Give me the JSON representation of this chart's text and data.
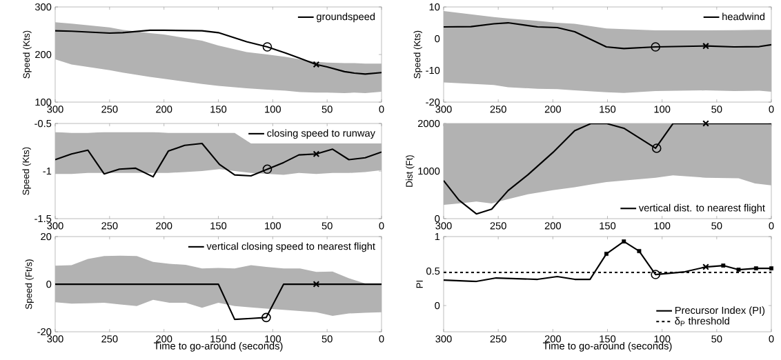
{
  "chart_data": [
    {
      "type": "line",
      "ylabel": "Speed (Kts)",
      "xlim": [
        300,
        0
      ],
      "ylim": [
        100,
        300
      ],
      "xticks": [
        300,
        250,
        200,
        150,
        100,
        50,
        0
      ],
      "yticks": [
        100,
        200,
        300
      ],
      "legend": "top right",
      "series": [
        {
          "name": "groundspeed",
          "color": "#000000",
          "x": [
            300,
            285,
            250,
            238,
            213,
            200,
            165,
            150,
            124,
            105,
            88,
            75,
            60,
            50,
            34,
            25,
            15,
            0
          ],
          "values": [
            250,
            249,
            245,
            246,
            251,
            251,
            250,
            246,
            227,
            216,
            203,
            192,
            179,
            174,
            164,
            161,
            159,
            162
          ],
          "upper": [
            268,
            265,
            257,
            252,
            245,
            242,
            229,
            219,
            205,
            200,
            195,
            190,
            185,
            183,
            182,
            182,
            181,
            181
          ],
          "lower": [
            190,
            179,
            167,
            162,
            153,
            149,
            138,
            134,
            129,
            126,
            124,
            121,
            120,
            120,
            119,
            120,
            119,
            122
          ]
        },
        {
          "type": "scatter",
          "marker": "circle",
          "color": "#000000",
          "x": [
            105
          ],
          "values": [
            216
          ]
        },
        {
          "type": "scatter",
          "marker": "cross",
          "color": "#000000",
          "x": [
            60
          ],
          "values": [
            179
          ]
        }
      ]
    },
    {
      "type": "line",
      "ylabel": "Speed (Kts)",
      "xlim": [
        300,
        0
      ],
      "ylim": [
        -20,
        10
      ],
      "xticks": [
        300,
        250,
        200,
        150,
        100,
        50,
        0
      ],
      "yticks": [
        -20,
        -10,
        0,
        10
      ],
      "legend": "top right",
      "series": [
        {
          "name": "headwind",
          "color": "#000000",
          "x": [
            300,
            275,
            254,
            241,
            214,
            196,
            180,
            151,
            135,
            106,
            60,
            34,
            11,
            0
          ],
          "values": [
            3.7,
            3.8,
            4.7,
            5,
            3.7,
            3.5,
            2.2,
            -2.6,
            -3.1,
            -2.6,
            -2.3,
            -2.6,
            -2.5,
            -1.9
          ],
          "upper": [
            8.7,
            7.7,
            6.8,
            6.4,
            5.6,
            5,
            4.7,
            3.2,
            3,
            2.6,
            2.6,
            2.7,
            2.8,
            2.8
          ],
          "lower": [
            -13.8,
            -14.2,
            -14.6,
            -15.3,
            -15.8,
            -15.9,
            -16.3,
            -16.9,
            -17.1,
            -16.5,
            -16.3,
            -16.5,
            -16.4,
            -16.7
          ]
        },
        {
          "type": "scatter",
          "marker": "circle",
          "color": "#000000",
          "x": [
            106
          ],
          "values": [
            -2.6
          ]
        },
        {
          "type": "scatter",
          "marker": "cross",
          "color": "#000000",
          "x": [
            60
          ],
          "values": [
            -2.3
          ]
        }
      ]
    },
    {
      "type": "line",
      "ylabel": "Speed (Kts)",
      "xlim": [
        300,
        0
      ],
      "ylim": [
        -1.5,
        -0.5
      ],
      "xticks": [
        300,
        250,
        200,
        150,
        100,
        50,
        0
      ],
      "yticks": [
        -1.5,
        -1,
        -0.5
      ],
      "legend": "top right",
      "series": [
        {
          "name": "closing speed to runway",
          "color": "#000000",
          "x": [
            300,
            285,
            270,
            255,
            241,
            226,
            210,
            196,
            181,
            165,
            149,
            135,
            120,
            105,
            90,
            76,
            60,
            45,
            30,
            15,
            0
          ],
          "values": [
            -0.88,
            -0.82,
            -0.78,
            -1.03,
            -0.98,
            -0.97,
            -1.06,
            -0.79,
            -0.73,
            -0.71,
            -0.93,
            -1.04,
            -1.05,
            -0.98,
            -0.91,
            -0.83,
            -0.82,
            -0.77,
            -0.88,
            -0.86,
            -0.8
          ],
          "upper": [
            -0.59,
            -0.6,
            -0.6,
            -0.59,
            -0.59,
            -0.59,
            -0.59,
            -0.6,
            -0.6,
            -0.6,
            -0.6,
            -0.6,
            -0.71,
            -0.71,
            -0.71,
            -0.71,
            -0.71,
            -0.71,
            -0.71,
            -0.71,
            -0.71
          ],
          "lower": [
            -1.03,
            -1.03,
            -1.02,
            -1.02,
            -1.02,
            -1.02,
            -1.02,
            -1.02,
            -1.01,
            -1,
            -0.98,
            -1,
            -1.02,
            -1.03,
            -1.04,
            -1.02,
            -1.03,
            -1.02,
            -1.02,
            -1.01,
            -0.99
          ]
        },
        {
          "type": "scatter",
          "marker": "circle",
          "color": "#000000",
          "x": [
            105
          ],
          "values": [
            -0.98
          ]
        },
        {
          "type": "scatter",
          "marker": "cross",
          "color": "#000000",
          "x": [
            60
          ],
          "values": [
            -0.82
          ]
        }
      ]
    },
    {
      "type": "line",
      "ylabel": "Dist (Ft)",
      "xlim": [
        300,
        0
      ],
      "ylim": [
        0,
        2000
      ],
      "xticks": [
        300,
        250,
        200,
        150,
        100,
        50,
        0
      ],
      "yticks": [
        0,
        1000,
        2000
      ],
      "legend": "bottom right",
      "series": [
        {
          "name": "vertical dist. to nearest flight",
          "color": "#000000",
          "x": [
            300,
            286,
            270,
            256,
            241,
            223,
            200,
            180,
            165,
            151,
            135,
            106,
            90,
            60,
            30,
            15,
            0
          ],
          "values": [
            800,
            390,
            100,
            200,
            590,
            920,
            1390,
            1850,
            2000,
            2000,
            1900,
            1480,
            2000,
            2000,
            2000,
            2000,
            2000
          ],
          "upper": [
            2000,
            2000,
            2000,
            2000,
            2000,
            2000,
            2000,
            2000,
            2000,
            2000,
            2000,
            2000,
            2000,
            2000,
            2000,
            2000,
            2000
          ],
          "lower": [
            290,
            320,
            360,
            320,
            410,
            510,
            600,
            660,
            720,
            770,
            800,
            860,
            910,
            860,
            850,
            740,
            700
          ]
        },
        {
          "type": "scatter",
          "marker": "circle",
          "color": "#000000",
          "x": [
            105
          ],
          "values": [
            1480
          ]
        },
        {
          "type": "scatter",
          "marker": "cross",
          "color": "#000000",
          "x": [
            60
          ],
          "values": [
            2000
          ]
        }
      ]
    },
    {
      "type": "line",
      "ylabel": "Speed (Ft/s)",
      "xlabel": "Time to go-around (seconds)",
      "xlim": [
        300,
        0
      ],
      "ylim": [
        -20,
        20
      ],
      "xticks": [
        300,
        250,
        200,
        150,
        100,
        50,
        0
      ],
      "yticks": [
        -20,
        0,
        20
      ],
      "legend": "top right",
      "series": [
        {
          "name": "vertical closing speed to nearest flight",
          "color": "#000000",
          "x": [
            300,
            285,
            270,
            255,
            240,
            225,
            210,
            195,
            180,
            165,
            150,
            135,
            120,
            106,
            90,
            75,
            60,
            45,
            30,
            15,
            0
          ],
          "values": [
            0,
            0,
            0,
            0,
            0,
            0,
            0,
            0,
            0,
            0,
            0,
            -14.8,
            -14.4,
            -14,
            0,
            0,
            0,
            0,
            0,
            0,
            0
          ],
          "upper": [
            7.8,
            8,
            10.6,
            11.8,
            12,
            11.8,
            9.4,
            8.6,
            8.1,
            6.6,
            6.8,
            6.6,
            8,
            7.3,
            6.6,
            6.6,
            5.2,
            5.3,
            2.5,
            0.3,
            0.2
          ],
          "lower": [
            -7.6,
            -8.2,
            -8,
            -7.8,
            -8.5,
            -9.2,
            -6.6,
            -7.8,
            -7.8,
            -9.9,
            -7.8,
            -9.2,
            -9.8,
            -10.3,
            -10.8,
            -11.3,
            -11.8,
            -13.3,
            -12.3,
            -12,
            -11.8
          ]
        },
        {
          "type": "scatter",
          "marker": "circle",
          "color": "#000000",
          "x": [
            106
          ],
          "values": [
            -14
          ]
        },
        {
          "type": "scatter",
          "marker": "cross",
          "color": "#000000",
          "x": [
            60
          ],
          "values": [
            0
          ]
        }
      ]
    },
    {
      "type": "line",
      "ylabel": "PI",
      "xlabel": "Time to go-around (seconds)",
      "xlim": [
        300,
        0
      ],
      "ylim": [
        -0.38,
        1
      ],
      "xticks": [
        300,
        250,
        200,
        150,
        100,
        50,
        0
      ],
      "yticks": [
        0,
        0.5,
        1
      ],
      "legend": "bottom right",
      "series": [
        {
          "name": "Precursor Index (PI)",
          "color": "#000000",
          "x": [
            300,
            270,
            252,
            214,
            196,
            180,
            166,
            151,
            135,
            121,
            106,
            79,
            60,
            44,
            30,
            14,
            0
          ],
          "values": [
            0.37,
            0.35,
            0.4,
            0.38,
            0.42,
            0.38,
            0.38,
            0.75,
            0.93,
            0.79,
            0.45,
            0.49,
            0.56,
            0.58,
            0.52,
            0.54,
            0.54
          ]
        },
        {
          "name": "δ$_{P}$ threshold",
          "color": "#000000",
          "line_style": "dashed",
          "x": [
            300,
            0
          ],
          "values": [
            0.48,
            0.48
          ]
        },
        {
          "type": "scatter",
          "marker": "square",
          "color": "#000000",
          "x": [
            151,
            135,
            121,
            44,
            30,
            14,
            0
          ],
          "values": [
            0.75,
            0.93,
            0.79,
            0.58,
            0.52,
            0.54,
            0.54
          ]
        },
        {
          "type": "scatter",
          "marker": "circle",
          "color": "#000000",
          "x": [
            106
          ],
          "values": [
            0.45
          ]
        },
        {
          "type": "scatter",
          "marker": "cross",
          "color": "#000000",
          "x": [
            60
          ],
          "values": [
            0.56
          ]
        }
      ]
    }
  ]
}
